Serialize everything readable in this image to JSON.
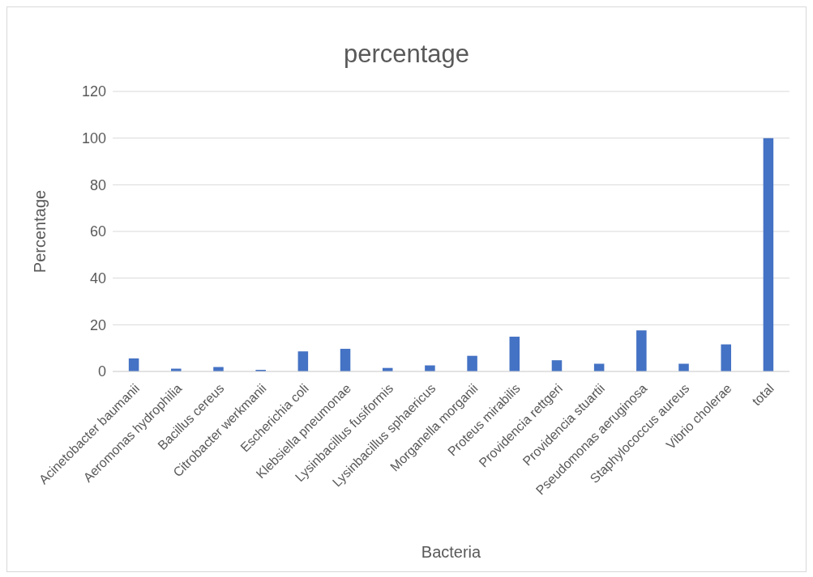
{
  "chart_data": {
    "type": "bar",
    "title": "percentage",
    "xlabel": "Bacteria",
    "ylabel": "Percentage",
    "categories": [
      "Acinetobacter baumanii",
      "Aeromonas hydrophilia",
      "Bacillus cereus",
      "Citrobacter werkmanii",
      "Escherichia coli",
      "Klebsiella pneumonae",
      "Lysinbacillus fusiformis",
      "Lysinbacillus sphaericus",
      "Morganella morganii",
      "Proteus mirabilis",
      "Providencia rettgeri",
      "Providencia stuartii",
      "Pseudomonas aeruginosa",
      "Staphylococcus aureus",
      "Vibrio cholerae",
      "total"
    ],
    "values": [
      5.6,
      1.2,
      1.9,
      0.7,
      8.6,
      9.7,
      1.5,
      2.6,
      6.7,
      14.9,
      4.8,
      3.3,
      17.6,
      3.3,
      11.6,
      100
    ],
    "color": "#4472c4",
    "ylim": [
      0,
      120
    ],
    "yticks": [
      0,
      20,
      40,
      60,
      80,
      100,
      120
    ],
    "grid": "y"
  }
}
